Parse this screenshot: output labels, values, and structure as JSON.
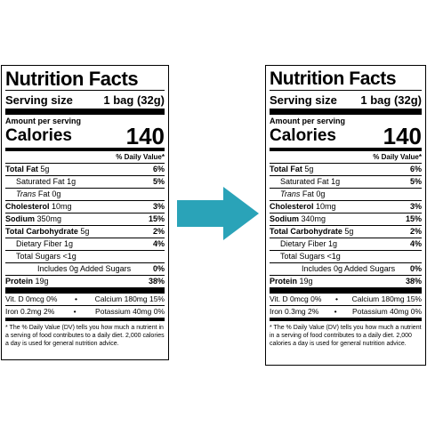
{
  "labels": [
    {
      "title": "Nutrition Facts",
      "serving_label": "Serving size",
      "serving_value": "1 bag (32g)",
      "amount_per_serving": "Amount per serving",
      "calories_label": "Calories",
      "calories_value": "140",
      "dv_header": "% Daily Value*",
      "nutrients": [
        {
          "name": "Total Fat",
          "amount": "5g",
          "dv": "6%"
        },
        {
          "name": "Saturated Fat",
          "amount": "1g",
          "dv": "5%"
        },
        {
          "name": "Trans",
          "amount": "Fat 0g",
          "dv": ""
        },
        {
          "name": "Cholesterol",
          "amount": "10mg",
          "dv": "3%"
        },
        {
          "name": "Sodium",
          "amount": "350mg",
          "dv": "15%"
        },
        {
          "name": "Total Carbohydrate",
          "amount": "5g",
          "dv": "2%"
        },
        {
          "name": "Dietary Fiber",
          "amount": "1g",
          "dv": "4%"
        },
        {
          "name": "Total Sugars",
          "amount": "<1g",
          "dv": ""
        },
        {
          "name": "Includes 0g Added Sugars",
          "amount": "",
          "dv": "0%"
        },
        {
          "name": "Protein",
          "amount": "19g",
          "dv": "38%"
        }
      ],
      "vitamins": [
        {
          "left": "Vit. D 0mcg 0%",
          "right": "Calcium 180mg 15%"
        },
        {
          "left": "Iron 0.2mg 2%",
          "right": "Potassium 40mg 0%"
        }
      ],
      "footnote": "* The % Daily Value (DV) tells you how much a nutrient in a serving of food contributes to a daily diet. 2,000 calories a day is used for general nutrition advice."
    },
    {
      "title": "Nutrition Facts",
      "serving_label": "Serving size",
      "serving_value": "1 bag (32g)",
      "amount_per_serving": "Amount per serving",
      "calories_label": "Calories",
      "calories_value": "140",
      "dv_header": "% Daily Value*",
      "nutrients": [
        {
          "name": "Total Fat",
          "amount": "5g",
          "dv": "6%"
        },
        {
          "name": "Saturated Fat",
          "amount": "1g",
          "dv": "5%"
        },
        {
          "name": "Trans",
          "amount": "Fat 0g",
          "dv": ""
        },
        {
          "name": "Cholesterol",
          "amount": "10mg",
          "dv": "3%"
        },
        {
          "name": "Sodium",
          "amount": "340mg",
          "dv": "15%"
        },
        {
          "name": "Total Carbohydrate",
          "amount": "5g",
          "dv": "2%"
        },
        {
          "name": "Dietary Fiber",
          "amount": "1g",
          "dv": "4%"
        },
        {
          "name": "Total Sugars",
          "amount": "<1g",
          "dv": ""
        },
        {
          "name": "Includes 0g Added Sugars",
          "amount": "",
          "dv": "0%"
        },
        {
          "name": "Protein",
          "amount": "19g",
          "dv": "38%"
        }
      ],
      "vitamins": [
        {
          "left": "Vit. D 0mcg 0%",
          "right": "Calcium 180mg 15%"
        },
        {
          "left": "Iron 0.3mg 2%",
          "right": "Potassium 40mg 0%"
        }
      ],
      "footnote": "* The % Daily Value (DV) tells you how much a nutrient in a serving of food contributes to a daily diet. 2,000 calories a day is used for general nutrition advice."
    }
  ],
  "arrow": {
    "color": "#2aa3b8",
    "icon": "right-arrow-icon"
  }
}
